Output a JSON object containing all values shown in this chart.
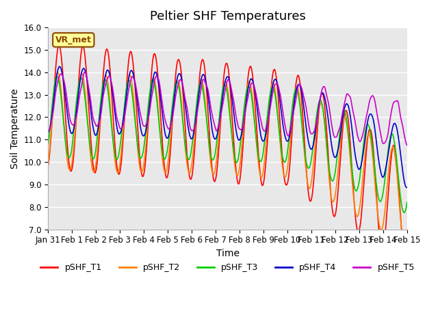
{
  "title": "Peltier SHF Temperatures",
  "xlabel": "Time",
  "ylabel": "Soil Temperature",
  "ylim": [
    7.0,
    16.0
  ],
  "yticks": [
    7.0,
    8.0,
    9.0,
    10.0,
    11.0,
    12.0,
    13.0,
    14.0,
    15.0,
    16.0
  ],
  "xtick_labels": [
    "Jan 31",
    "Feb 1",
    "Feb 2",
    "Feb 3",
    "Feb 4",
    "Feb 5",
    "Feb 6",
    "Feb 7",
    "Feb 8",
    "Feb 9",
    "Feb 10",
    "Feb 11",
    "Feb 12",
    "Feb 13",
    "Feb 14",
    "Feb 15"
  ],
  "legend_label": "VR_met",
  "series_labels": [
    "pSHF_T1",
    "pSHF_T2",
    "pSHF_T3",
    "pSHF_T4",
    "pSHF_T5"
  ],
  "series_colors": [
    "#ff0000",
    "#ff8000",
    "#00cc00",
    "#0000cc",
    "#cc00cc"
  ],
  "bg_color": "#ffffff",
  "plot_bg_color": "#e8e8e8",
  "grid_color": "#ffffff",
  "title_fontsize": 13,
  "axis_fontsize": 10,
  "tick_fontsize": 8.5,
  "legend_fontsize": 9,
  "linewidth": 1.2
}
